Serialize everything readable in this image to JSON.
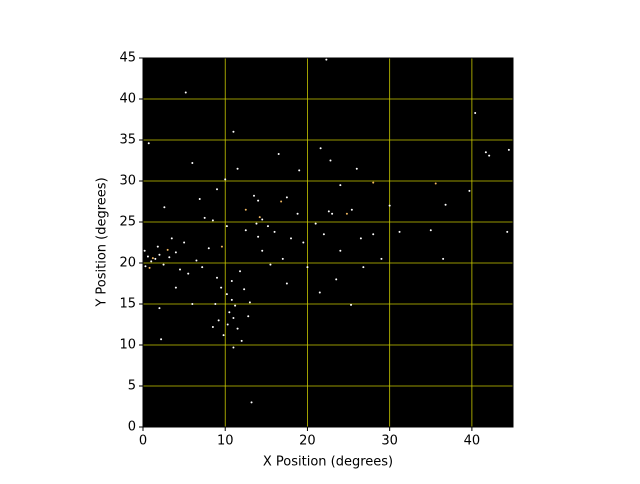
{
  "chart_data": {
    "type": "scatter",
    "xlabel": "X Position (degrees)",
    "ylabel": "Y Position (degrees)",
    "xlim": [
      0,
      45
    ],
    "ylim": [
      0,
      45
    ],
    "xticks": [
      0,
      10,
      20,
      30,
      40
    ],
    "yticks": [
      0,
      5,
      10,
      15,
      20,
      25,
      30,
      35,
      40,
      45
    ],
    "grid": true,
    "grid_color": "#c8c800",
    "background": "#000000",
    "series": [
      {
        "color": "#ffffff",
        "x": [
          22.3,
          5.2,
          11,
          40.4,
          0.7,
          21.6,
          41.7,
          42.1,
          16.5,
          6,
          44.5,
          22.8,
          11.5,
          19,
          26,
          10,
          24,
          2.6,
          6.9,
          13.5,
          14,
          17.5,
          22.6,
          23,
          25.4,
          18.8,
          14.5,
          13.8,
          15.2,
          12.5,
          14,
          16,
          10.2,
          8.5,
          7.5,
          30,
          39.7,
          36.8,
          44.3,
          31.2,
          35,
          28,
          26.5,
          22,
          19.5,
          24,
          29,
          36.5,
          0.2,
          0.6,
          1,
          0.3,
          1.5,
          2,
          2.5,
          3.2,
          4,
          4.5,
          5.5,
          6.5,
          7.2,
          8,
          3.5,
          1.8,
          5,
          9,
          9.5,
          10.2,
          10.8,
          11.2,
          10.5,
          11,
          10.3,
          11.5,
          9.8,
          12,
          11,
          8.8,
          12.3,
          13,
          12.8,
          9.2,
          8.5,
          10.8,
          11.8,
          13.2,
          25.3,
          21.5,
          23.5,
          20,
          17,
          15.5,
          14.5,
          6,
          4,
          2,
          2.2,
          17.5,
          26.8,
          21,
          18,
          9
        ],
        "y": [
          44.8,
          40.8,
          36,
          38.3,
          34.6,
          34,
          33.5,
          33.1,
          33.3,
          32.2,
          33.8,
          32.5,
          31.5,
          31.3,
          31.5,
          30.2,
          29.5,
          26.8,
          27.8,
          28.2,
          27.6,
          28,
          26.3,
          26,
          26.5,
          26,
          25.3,
          24.8,
          24.5,
          24,
          23.2,
          23.8,
          24.5,
          25.2,
          25.5,
          27,
          28.8,
          27.1,
          23.8,
          23.8,
          24,
          23.5,
          23,
          23.5,
          22.5,
          21.5,
          20.5,
          20.5,
          21.5,
          20.8,
          20.2,
          19.6,
          20.5,
          21,
          19.8,
          20.7,
          21.3,
          19.2,
          18.7,
          20.3,
          19.5,
          21.8,
          23,
          22,
          22.5,
          18.2,
          17,
          16.2,
          15.5,
          14.8,
          14,
          13.3,
          12.5,
          12,
          11.2,
          10.5,
          9.7,
          15,
          16.8,
          15.2,
          13.5,
          13,
          12.2,
          17.8,
          19,
          3,
          14.9,
          16.4,
          18,
          19.5,
          20.5,
          19.8,
          21.5,
          15,
          17,
          14.5,
          10.7,
          17.5,
          19.5,
          24.8,
          23,
          29
        ]
      },
      {
        "color": "#f0b860",
        "x": [
          35.6,
          14.2,
          1.2,
          0.8,
          3,
          24.8,
          28,
          9.6,
          12.5,
          16.8
        ],
        "y": [
          29.7,
          25.6,
          20.6,
          19.4,
          21.6,
          26,
          29.8,
          22,
          26.5,
          27.5
        ]
      }
    ]
  }
}
